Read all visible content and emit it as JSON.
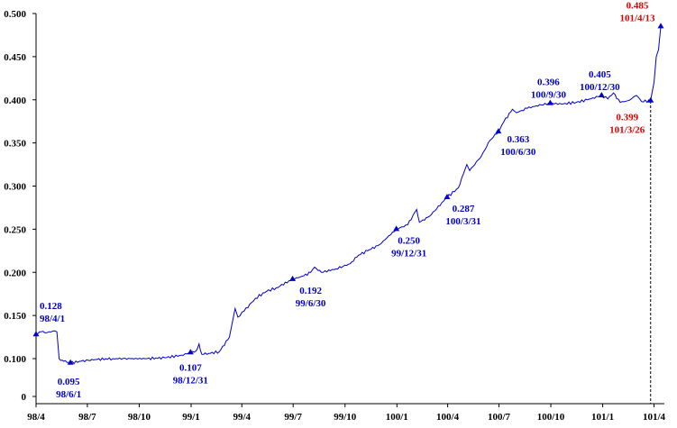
{
  "chart_data": {
    "type": "line",
    "title": "",
    "xlabel": "",
    "ylabel": "",
    "ylim": [
      0,
      0.5
    ],
    "y_ticks": [
      {
        "v": 0.0,
        "label": "0"
      },
      {
        "v": 0.1,
        "label": "0.100"
      },
      {
        "v": 0.15,
        "label": "0.150"
      },
      {
        "v": 0.2,
        "label": "0.200"
      },
      {
        "v": 0.25,
        "label": "0.250"
      },
      {
        "v": 0.3,
        "label": "0.300"
      },
      {
        "v": 0.35,
        "label": "0.350"
      },
      {
        "v": 0.4,
        "label": "0.400"
      },
      {
        "v": 0.45,
        "label": "0.450"
      },
      {
        "v": 0.5,
        "label": "0.500"
      }
    ],
    "x_ticks": [
      {
        "date": "2009-04-01",
        "label": "98/4"
      },
      {
        "date": "2009-07-01",
        "label": "98/7"
      },
      {
        "date": "2009-10-01",
        "label": "98/10"
      },
      {
        "date": "2010-01-01",
        "label": "99/1"
      },
      {
        "date": "2010-04-01",
        "label": "99/4"
      },
      {
        "date": "2010-07-01",
        "label": "99/7"
      },
      {
        "date": "2010-10-01",
        "label": "99/10"
      },
      {
        "date": "2011-01-01",
        "label": "100/1"
      },
      {
        "date": "2011-04-01",
        "label": "100/4"
      },
      {
        "date": "2011-07-01",
        "label": "100/7"
      },
      {
        "date": "2011-10-01",
        "label": "100/10"
      },
      {
        "date": "2012-01-01",
        "label": "101/1"
      },
      {
        "date": "2012-04-01",
        "label": "101/4"
      }
    ],
    "series": [
      {
        "color": "#0000cc",
        "points": [
          [
            "2009-04-01",
            0.128
          ],
          [
            "2009-04-10",
            0.131
          ],
          [
            "2009-04-20",
            0.13
          ],
          [
            "2009-05-01",
            0.132
          ],
          [
            "2009-05-08",
            0.131
          ],
          [
            "2009-05-12",
            0.1
          ],
          [
            "2009-05-20",
            0.097
          ],
          [
            "2009-06-01",
            0.095
          ],
          [
            "2009-06-20",
            0.097
          ],
          [
            "2009-07-15",
            0.099
          ],
          [
            "2009-08-15",
            0.1
          ],
          [
            "2009-09-15",
            0.1
          ],
          [
            "2009-10-15",
            0.1
          ],
          [
            "2009-11-15",
            0.101
          ],
          [
            "2009-12-15",
            0.104
          ],
          [
            "2009-12-31",
            0.107
          ],
          [
            "2010-01-10",
            0.109
          ],
          [
            "2010-01-15",
            0.117
          ],
          [
            "2010-01-20",
            0.105
          ],
          [
            "2010-02-01",
            0.106
          ],
          [
            "2010-02-20",
            0.108
          ],
          [
            "2010-03-10",
            0.125
          ],
          [
            "2010-03-20",
            0.158
          ],
          [
            "2010-03-25",
            0.148
          ],
          [
            "2010-04-05",
            0.155
          ],
          [
            "2010-04-25",
            0.17
          ],
          [
            "2010-05-15",
            0.178
          ],
          [
            "2010-06-01",
            0.182
          ],
          [
            "2010-06-30",
            0.192
          ],
          [
            "2010-07-20",
            0.196
          ],
          [
            "2010-08-01",
            0.2
          ],
          [
            "2010-08-08",
            0.206
          ],
          [
            "2010-08-20",
            0.2
          ],
          [
            "2010-09-15",
            0.204
          ],
          [
            "2010-10-10",
            0.21
          ],
          [
            "2010-10-25",
            0.22
          ],
          [
            "2010-11-10",
            0.225
          ],
          [
            "2010-12-01",
            0.232
          ],
          [
            "2010-12-31",
            0.25
          ],
          [
            "2011-01-20",
            0.255
          ],
          [
            "2011-02-05",
            0.273
          ],
          [
            "2011-02-10",
            0.258
          ],
          [
            "2011-02-28",
            0.265
          ],
          [
            "2011-03-31",
            0.287
          ],
          [
            "2011-04-20",
            0.298
          ],
          [
            "2011-05-05",
            0.325
          ],
          [
            "2011-05-10",
            0.318
          ],
          [
            "2011-05-31",
            0.335
          ],
          [
            "2011-06-15",
            0.353
          ],
          [
            "2011-06-30",
            0.363
          ],
          [
            "2011-07-10",
            0.375
          ],
          [
            "2011-07-25",
            0.389
          ],
          [
            "2011-08-01",
            0.385
          ],
          [
            "2011-08-20",
            0.39
          ],
          [
            "2011-09-05",
            0.393
          ],
          [
            "2011-09-30",
            0.396
          ],
          [
            "2011-10-20",
            0.395
          ],
          [
            "2011-11-15",
            0.397
          ],
          [
            "2011-12-05",
            0.4
          ],
          [
            "2011-12-30",
            0.405
          ],
          [
            "2012-01-10",
            0.401
          ],
          [
            "2012-01-20",
            0.408
          ],
          [
            "2012-02-01",
            0.397
          ],
          [
            "2012-02-15",
            0.399
          ],
          [
            "2012-03-01",
            0.405
          ],
          [
            "2012-03-10",
            0.398
          ],
          [
            "2012-03-26",
            0.399
          ],
          [
            "2012-04-01",
            0.42
          ],
          [
            "2012-04-05",
            0.45
          ],
          [
            "2012-04-09",
            0.458
          ],
          [
            "2012-04-13",
            0.485
          ]
        ]
      }
    ],
    "annotations": [
      {
        "date": "2009-04-01",
        "value": 0.128,
        "label": "0.128",
        "date_label": "98/4/1",
        "color": "#0000cc",
        "anchor": "start",
        "dx": 4,
        "dy": -28
      },
      {
        "date": "2009-06-01",
        "value": 0.095,
        "label": "0.095",
        "date_label": "98/6/1",
        "color": "#0000cc",
        "anchor": "middle",
        "dx": -2,
        "dy": 24
      },
      {
        "date": "2009-12-31",
        "value": 0.107,
        "label": "0.107",
        "date_label": "98/12/31",
        "color": "#0000cc",
        "anchor": "middle",
        "dx": 0,
        "dy": 20
      },
      {
        "date": "2010-06-30",
        "value": 0.192,
        "label": "0.192",
        "date_label": "99/6/30",
        "color": "#0000cc",
        "anchor": "middle",
        "dx": 20,
        "dy": 16
      },
      {
        "date": "2010-12-31",
        "value": 0.25,
        "label": "0.250",
        "date_label": "99/12/31",
        "color": "#0000cc",
        "anchor": "middle",
        "dx": 14,
        "dy": 16
      },
      {
        "date": "2011-03-31",
        "value": 0.287,
        "label": "0.287",
        "date_label": "100/3/31",
        "color": "#0000cc",
        "anchor": "middle",
        "dx": 18,
        "dy": 16
      },
      {
        "date": "2011-06-30",
        "value": 0.363,
        "label": "0.363",
        "date_label": "100/6/30",
        "color": "#0000cc",
        "anchor": "middle",
        "dx": 22,
        "dy": 12
      },
      {
        "date": "2011-09-30",
        "value": 0.396,
        "label": "0.396",
        "date_label": "100/9/30",
        "color": "#0000cc",
        "anchor": "middle",
        "dx": -2,
        "dy": -20
      },
      {
        "date": "2011-12-30",
        "value": 0.405,
        "label": "0.405",
        "date_label": "100/12/30",
        "color": "#0000cc",
        "anchor": "middle",
        "dx": -2,
        "dy": -20
      },
      {
        "date": "2012-03-26",
        "value": 0.399,
        "label": "0.399",
        "date_label": "101/3/26",
        "color": "#e00000",
        "anchor": "middle",
        "dx": -26,
        "dy": 22
      },
      {
        "date": "2012-04-13",
        "value": 0.485,
        "label": "0.485",
        "date_label": "101/4/13",
        "color": "#e00000",
        "anchor": "middle",
        "dx": -26,
        "dy": -20
      }
    ],
    "reference_line": {
      "date": "2012-03-26"
    },
    "grid": false,
    "legend": "none"
  }
}
